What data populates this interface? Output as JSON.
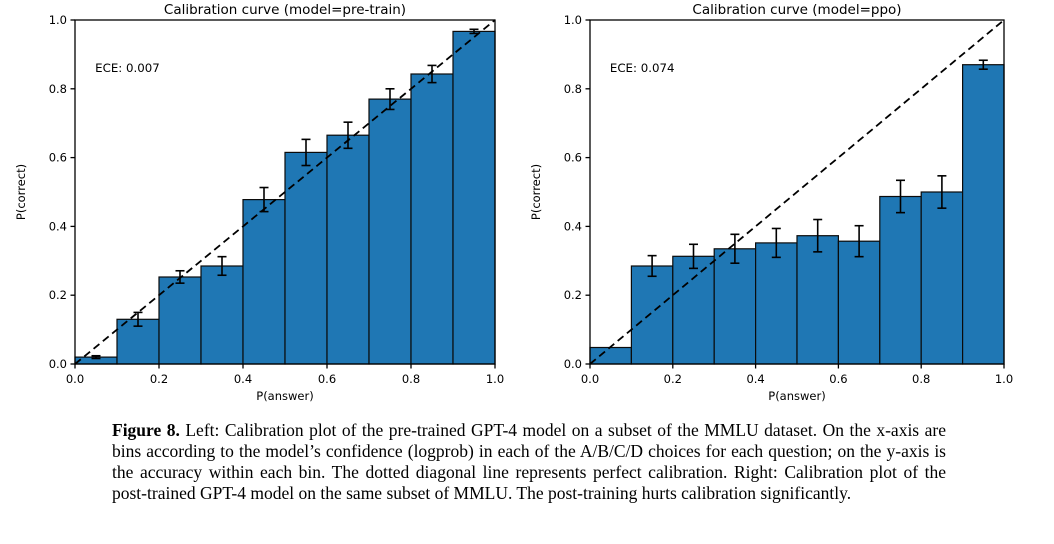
{
  "colors": {
    "bar_fill": "#1f77b4",
    "bar_edge": "#0b0b0b",
    "diagonal": "#000000",
    "axis": "#000000",
    "text": "#000000",
    "background": "#ffffff"
  },
  "chart_data": [
    {
      "type": "bar",
      "title": "Calibration curve (model=pre-train)",
      "annotation": "ECE: 0.007",
      "xlabel": "P(answer)",
      "ylabel": "P(correct)",
      "xlim": [
        0.0,
        1.0
      ],
      "ylim": [
        0.0,
        1.0
      ],
      "grid": false,
      "legend": null,
      "diagonal_line": "perfect calibration (dashed, 0,0 to 1,1)",
      "x_ticks": [
        "0.0",
        "0.2",
        "0.4",
        "0.6",
        "0.8",
        "1.0"
      ],
      "y_ticks": [
        "0.0",
        "0.2",
        "0.4",
        "0.6",
        "0.8",
        "1.0"
      ],
      "bin_edges": [
        0.0,
        0.1,
        0.2,
        0.3,
        0.4,
        0.5,
        0.6,
        0.7,
        0.8,
        0.9,
        1.0
      ],
      "values": [
        0.02,
        0.13,
        0.253,
        0.285,
        0.478,
        0.615,
        0.665,
        0.77,
        0.843,
        0.967
      ],
      "errors": [
        0.004,
        0.02,
        0.018,
        0.027,
        0.035,
        0.038,
        0.038,
        0.03,
        0.025,
        0.006
      ]
    },
    {
      "type": "bar",
      "title": "Calibration curve (model=ppo)",
      "annotation": "ECE: 0.074",
      "xlabel": "P(answer)",
      "ylabel": "P(correct)",
      "xlim": [
        0.0,
        1.0
      ],
      "ylim": [
        0.0,
        1.0
      ],
      "grid": false,
      "legend": null,
      "diagonal_line": "perfect calibration (dashed, 0,0 to 1,1)",
      "x_ticks": [
        "0.0",
        "0.2",
        "0.4",
        "0.6",
        "0.8",
        "1.0"
      ],
      "y_ticks": [
        "0.0",
        "0.2",
        "0.4",
        "0.6",
        "0.8",
        "1.0"
      ],
      "bin_edges": [
        0.0,
        0.1,
        0.2,
        0.3,
        0.4,
        0.5,
        0.6,
        0.7,
        0.8,
        0.9,
        1.0
      ],
      "values": [
        0.048,
        0.285,
        0.313,
        0.335,
        0.352,
        0.373,
        0.357,
        0.487,
        0.5,
        0.87
      ],
      "errors": [
        0.0,
        0.03,
        0.035,
        0.042,
        0.042,
        0.047,
        0.045,
        0.047,
        0.047,
        0.013
      ]
    }
  ],
  "figure": {
    "caption_label": "Figure 8.",
    "caption_text": " Left: Calibration plot of the pre-trained GPT-4 model on a subset of the MMLU dataset. On the x-axis are bins according to the model’s confidence (logprob) in each of the A/B/C/D choices for each question; on the y-axis is the accuracy within each bin. The dotted diagonal line represents perfect calibration. Right: Calibration plot of the post-trained GPT-4 model on the same subset of MMLU. The post-training hurts calibration significantly."
  }
}
